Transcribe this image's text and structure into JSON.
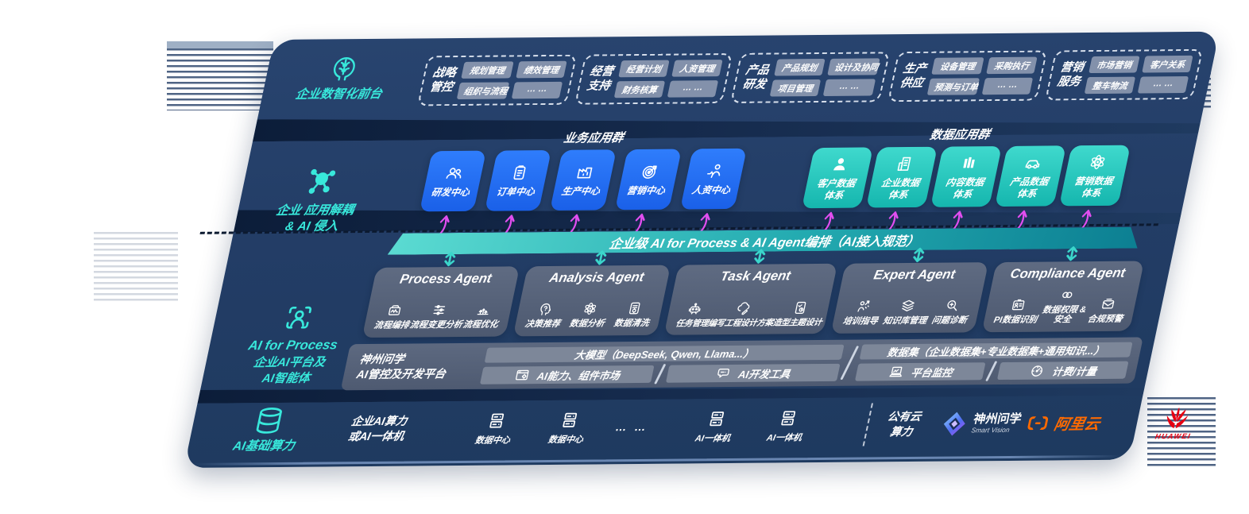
{
  "colors": {
    "panel_bg": "#233d66",
    "teal_accent": "#38e8db",
    "tile_blue": "#1e6cf0",
    "tile_teal": "#2bcfc4",
    "band_teal": "#23aab0",
    "arrow_magenta": "#e14ef0",
    "alicloud_orange": "#ff6a00",
    "huawei_red": "#e60012"
  },
  "front": {
    "label": "企业数智化前台",
    "groups": [
      {
        "title": "战略\n管控",
        "pills": [
          "规划管理",
          "绩效管理",
          "组织与流程",
          "… …"
        ]
      },
      {
        "title": "经营\n支持",
        "pills": [
          "经营计划",
          "人资管理",
          "财务核算",
          "… …"
        ]
      },
      {
        "title": "产品\n研发",
        "pills": [
          "产品规划",
          "设计及协同",
          "项目管理",
          "… …"
        ]
      },
      {
        "title": "生产\n供应",
        "pills": [
          "设备管理",
          "采购执行",
          "预测与订单",
          "… …"
        ]
      },
      {
        "title": "营销\n服务",
        "pills": [
          "市场营销",
          "客户关系",
          "整车物流",
          "… …"
        ]
      }
    ]
  },
  "apps": {
    "label": "企业 应用解耦\n& AI 侵入",
    "business_title": "业务应用群",
    "data_title": "数据应用群",
    "business_tiles": [
      {
        "label": "研发中心"
      },
      {
        "label": "订单中心"
      },
      {
        "label": "生产中心"
      },
      {
        "label": "营销中心"
      },
      {
        "label": "人资中心"
      }
    ],
    "data_tiles": [
      {
        "label": "客户数据\n体系"
      },
      {
        "label": "企业数据\n体系"
      },
      {
        "label": "内容数据\n体系"
      },
      {
        "label": "产品数据\n体系"
      },
      {
        "label": "营销数据\n体系"
      }
    ]
  },
  "band": {
    "label": "企业级 AI for Process & AI Agent编排（AI接入规范）"
  },
  "ai_layer": {
    "label_en": "AI for Process",
    "label_zh": "企业AI平台及\nAI智能体",
    "agents": [
      {
        "title": "Process Agent",
        "items": [
          {
            "label": "流程编排"
          },
          {
            "label": "流程变更分析"
          },
          {
            "label": "流程优化"
          }
        ]
      },
      {
        "title": "Analysis Agent",
        "items": [
          {
            "label": "决策推荐"
          },
          {
            "label": "数据分析"
          },
          {
            "label": "数据清洗"
          }
        ]
      },
      {
        "title": "Task Agent",
        "items": [
          {
            "label": "任务管理"
          },
          {
            "label": "编写工程设计方案"
          },
          {
            "label": "造型主题设计"
          }
        ]
      },
      {
        "title": "Expert Agent",
        "items": [
          {
            "label": "培训指导"
          },
          {
            "label": "知识库管理"
          },
          {
            "label": "问题诊断"
          }
        ]
      },
      {
        "title": "Compliance Agent",
        "items": [
          {
            "label": "PI数据识别"
          },
          {
            "label": "数据权限 &\n安全"
          },
          {
            "label": "合规预警"
          }
        ]
      }
    ]
  },
  "platform": {
    "label": "神州问学\nAI管控及开发平台",
    "model_bar": "大模型（DeepSeek, Qwen, Llama...）",
    "cap_cell": "AI能力、组件市场",
    "devtool_cell": "AI开发工具",
    "dataset_bar": "数据集（企业数据集+专业数据集+通用知识...）",
    "monitor_cell": "平台监控",
    "billing_cell": "计费/计量"
  },
  "infra": {
    "label": "AI基础算力",
    "compute_label": "企业AI算力\n或AI一体机",
    "nodes": [
      {
        "label": "数据中心"
      },
      {
        "label": "数据中心"
      },
      {
        "label": "AI一体机"
      },
      {
        "label": "AI一体机"
      }
    ],
    "dots": "… …",
    "public_cloud": "公有云\n算力",
    "logos": [
      {
        "name": "神州问学",
        "sub": "Smart Vision"
      },
      {
        "name": "阿里云"
      },
      {
        "name": "HUAWEI"
      }
    ]
  }
}
